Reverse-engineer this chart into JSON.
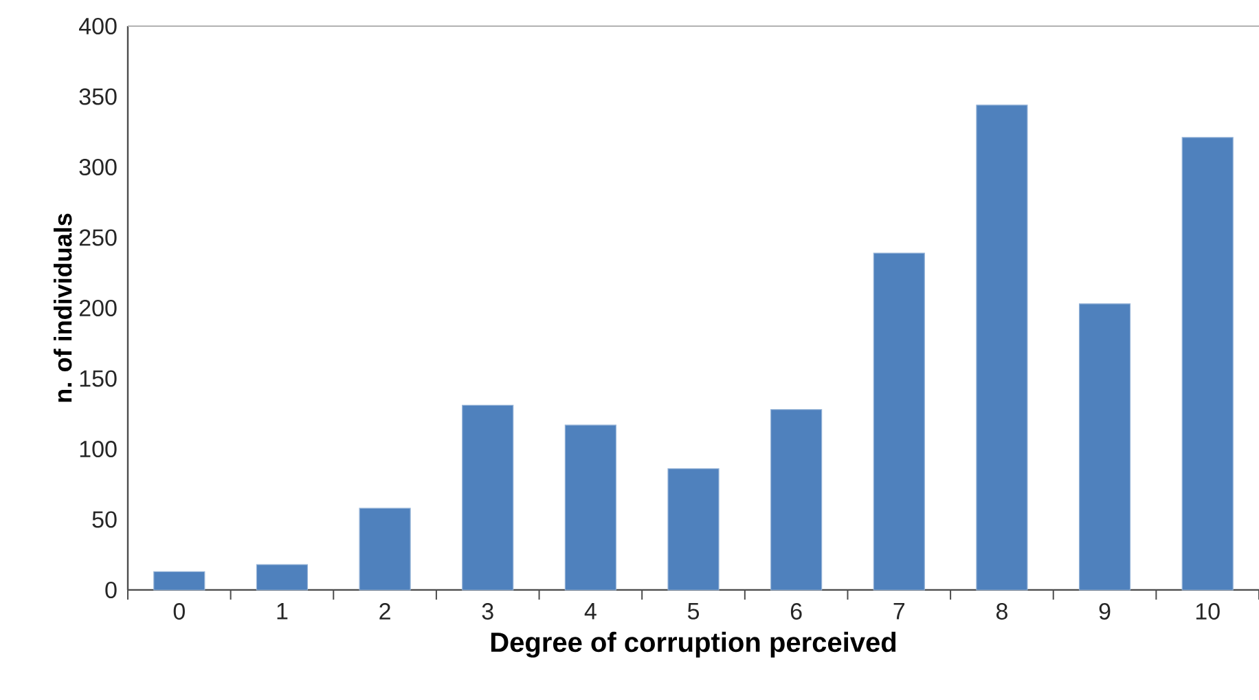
{
  "chart_data": {
    "type": "bar",
    "xlabel": "Degree of corruption perceived",
    "ylabel": "n. of individuals",
    "categories": [
      "0",
      "1",
      "2",
      "3",
      "4",
      "5",
      "6",
      "7",
      "8",
      "9",
      "10"
    ],
    "values": [
      13,
      18,
      58,
      131,
      117,
      86,
      128,
      239,
      344,
      203,
      321
    ],
    "color": "#4f81bd",
    "ylim": [
      0,
      400
    ],
    "yticks": [
      0,
      50,
      100,
      150,
      200,
      250,
      300,
      350,
      400
    ],
    "grid": false
  }
}
